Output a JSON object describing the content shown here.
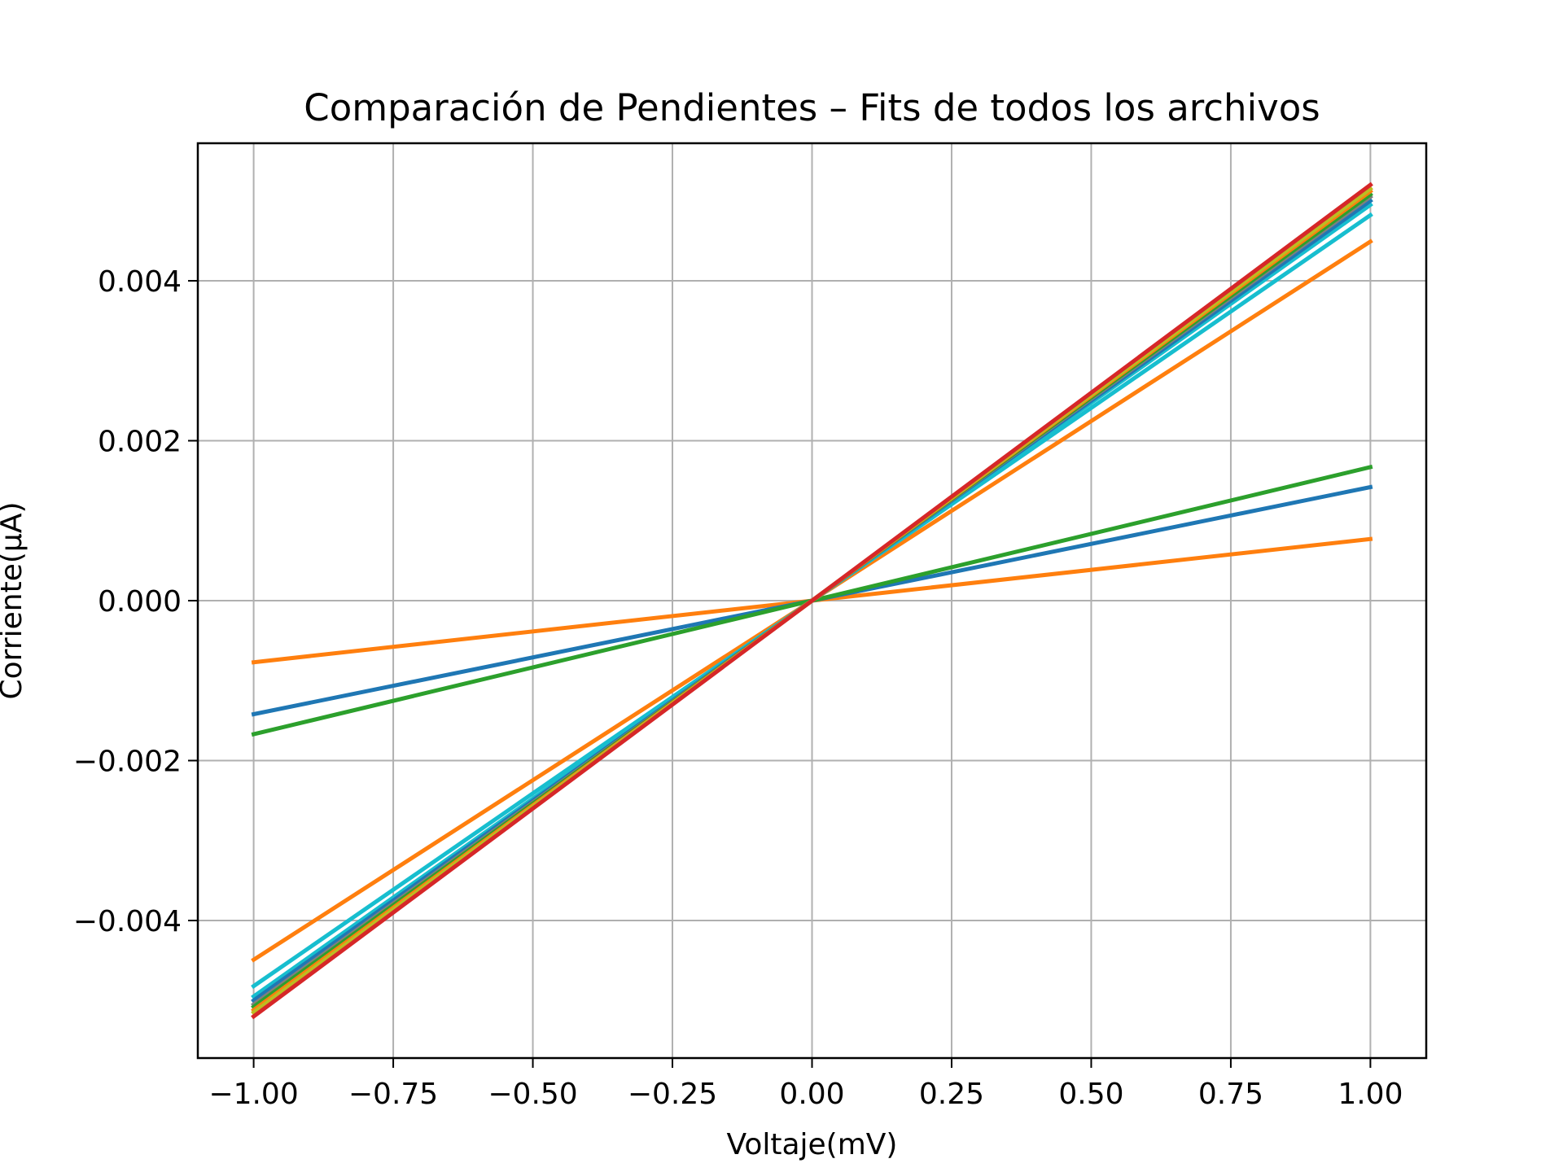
{
  "chart_data": {
    "type": "line",
    "title": "Comparación de Pendientes – Fits de todos los archivos",
    "xlabel": "Voltaje(mV)",
    "ylabel": "Corriente(μA)",
    "xlim": [
      -1.1,
      1.1
    ],
    "ylim": [
      -0.00572,
      0.00572
    ],
    "grid": true,
    "x_ticks": [
      {
        "value": -1.0,
        "label": "−1.00"
      },
      {
        "value": -0.75,
        "label": "−0.75"
      },
      {
        "value": -0.5,
        "label": "−0.50"
      },
      {
        "value": -0.25,
        "label": "−0.25"
      },
      {
        "value": 0.0,
        "label": "0.00"
      },
      {
        "value": 0.25,
        "label": "0.25"
      },
      {
        "value": 0.5,
        "label": "0.50"
      },
      {
        "value": 0.75,
        "label": "0.75"
      },
      {
        "value": 1.0,
        "label": "1.00"
      }
    ],
    "y_ticks": [
      {
        "value": -0.004,
        "label": "−0.004"
      },
      {
        "value": -0.002,
        "label": "−0.002"
      },
      {
        "value": 0.0,
        "label": "0.000"
      },
      {
        "value": 0.002,
        "label": "0.002"
      },
      {
        "value": 0.004,
        "label": "0.004"
      }
    ],
    "x": [
      -1.0,
      1.0
    ],
    "series": [
      {
        "color": "#d62728",
        "values": [
          -0.0052,
          0.0052
        ]
      },
      {
        "color": "#bcbd22",
        "values": [
          -0.00515,
          0.00515
        ]
      },
      {
        "color": "#ff7f0e",
        "values": [
          -0.00512,
          0.00512
        ]
      },
      {
        "color": "#2ca02c",
        "values": [
          -0.00508,
          0.00508
        ]
      },
      {
        "color": "#7f7f7f",
        "values": [
          -0.00505,
          0.00505
        ]
      },
      {
        "color": "#1f77b4",
        "values": [
          -0.005,
          0.005
        ]
      },
      {
        "color": "#17becf",
        "values": [
          -0.00495,
          0.00495
        ]
      },
      {
        "color": "#17becf",
        "values": [
          -0.00482,
          0.00482
        ]
      },
      {
        "color": "#ff7f0e",
        "values": [
          -0.00449,
          0.00449
        ]
      },
      {
        "color": "#2ca02c",
        "values": [
          -0.00167,
          0.00167
        ]
      },
      {
        "color": "#1f77b4",
        "values": [
          -0.00142,
          0.00142
        ]
      },
      {
        "color": "#ff7f0e",
        "values": [
          -0.00077,
          0.00077
        ]
      }
    ]
  }
}
